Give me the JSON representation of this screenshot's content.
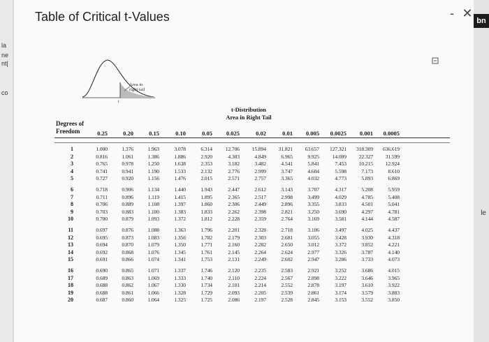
{
  "window": {
    "title": "Table of Critical t-Values",
    "minimize_label": "-",
    "close_label": "✕"
  },
  "background": {
    "left_fragments": [
      "la",
      "ne",
      "nt|",
      "co"
    ],
    "right_tab": "bn",
    "right_fragment": "le"
  },
  "figure": {
    "label": "Area in right tail",
    "t_marker": "t"
  },
  "table": {
    "title": "t-Distribution",
    "subtitle": "Area in Right Tail",
    "df_header": "Degrees of Freedom",
    "columns": [
      "0.25",
      "0.20",
      "0.15",
      "0.10",
      "0.05",
      "0.025",
      "0.02",
      "0.01",
      "0.005",
      "0.0025",
      "0.001",
      "0.0005"
    ],
    "rows": [
      {
        "df": "1",
        "values": [
          "1.000",
          "1.376",
          "1.963",
          "3.078",
          "6.314",
          "12.706",
          "15.894",
          "31.821",
          "63.657",
          "127.321",
          "318.309",
          "636.619"
        ]
      },
      {
        "df": "2",
        "values": [
          "0.816",
          "1.061",
          "1.386",
          "1.886",
          "2.920",
          "4.303",
          "4.849",
          "6.965",
          "9.925",
          "14.089",
          "22.327",
          "31.599"
        ]
      },
      {
        "df": "3",
        "values": [
          "0.765",
          "0.978",
          "1.250",
          "1.638",
          "2.353",
          "3.182",
          "3.482",
          "4.541",
          "5.841",
          "7.453",
          "10.215",
          "12.924"
        ]
      },
      {
        "df": "4",
        "values": [
          "0.741",
          "0.941",
          "1.190",
          "1.533",
          "2.132",
          "2.776",
          "2.999",
          "3.747",
          "4.604",
          "5.598",
          "7.173",
          "8.610"
        ]
      },
      {
        "df": "5",
        "values": [
          "0.727",
          "0.920",
          "1.156",
          "1.476",
          "2.015",
          "2.571",
          "2.757",
          "3.365",
          "4.032",
          "4.773",
          "5.893",
          "6.869"
        ]
      },
      {
        "df": "6",
        "values": [
          "0.718",
          "0.906",
          "1.134",
          "1.440",
          "1.943",
          "2.447",
          "2.612",
          "3.143",
          "3.707",
          "4.317",
          "5.208",
          "5.959"
        ]
      },
      {
        "df": "7",
        "values": [
          "0.711",
          "0.896",
          "1.119",
          "1.415",
          "1.895",
          "2.365",
          "2.517",
          "2.998",
          "3.499",
          "4.029",
          "4.785",
          "5.408"
        ]
      },
      {
        "df": "8",
        "values": [
          "0.706",
          "0.889",
          "1.108",
          "1.397",
          "1.860",
          "2.306",
          "2.449",
          "2.896",
          "3.355",
          "3.833",
          "4.501",
          "5.041"
        ]
      },
      {
        "df": "9",
        "values": [
          "0.703",
          "0.883",
          "1.100",
          "1.383",
          "1.833",
          "2.262",
          "2.398",
          "2.821",
          "3.250",
          "3.690",
          "4.297",
          "4.781"
        ]
      },
      {
        "df": "10",
        "values": [
          "0.700",
          "0.879",
          "1.093",
          "1.372",
          "1.812",
          "2.228",
          "2.359",
          "2.764",
          "3.169",
          "3.581",
          "4.144",
          "4.587"
        ]
      },
      {
        "df": "11",
        "values": [
          "0.697",
          "0.876",
          "1.088",
          "1.363",
          "1.796",
          "2.201",
          "2.328",
          "2.718",
          "3.106",
          "3.497",
          "4.025",
          "4.437"
        ]
      },
      {
        "df": "12",
        "values": [
          "0.695",
          "0.873",
          "1.083",
          "1.356",
          "1.782",
          "2.179",
          "2.303",
          "2.681",
          "3.055",
          "3.428",
          "3.930",
          "4.318"
        ]
      },
      {
        "df": "13",
        "values": [
          "0.694",
          "0.870",
          "1.079",
          "1.350",
          "1.771",
          "2.160",
          "2.282",
          "2.650",
          "3.012",
          "3.372",
          "3.852",
          "4.221"
        ]
      },
      {
        "df": "14",
        "values": [
          "0.692",
          "0.868",
          "1.076",
          "1.345",
          "1.761",
          "2.145",
          "2.264",
          "2.624",
          "2.977",
          "3.326",
          "3.787",
          "4.140"
        ]
      },
      {
        "df": "15",
        "values": [
          "0.691",
          "0.866",
          "1.074",
          "1.341",
          "1.753",
          "2.131",
          "2.249",
          "2.602",
          "2.947",
          "3.286",
          "3.733",
          "4.073"
        ]
      },
      {
        "df": "16",
        "values": [
          "0.690",
          "0.865",
          "1.071",
          "1.337",
          "1.746",
          "2.120",
          "2.235",
          "2.583",
          "2.921",
          "3.252",
          "3.686",
          "4.015"
        ]
      },
      {
        "df": "17",
        "values": [
          "0.689",
          "0.863",
          "1.069",
          "1.333",
          "1.740",
          "2.110",
          "2.224",
          "2.567",
          "2.898",
          "3.222",
          "3.646",
          "3.965"
        ]
      },
      {
        "df": "18",
        "values": [
          "0.688",
          "0.862",
          "1.067",
          "1.330",
          "1.734",
          "2.101",
          "2.214",
          "2.552",
          "2.878",
          "3.197",
          "3.610",
          "3.922"
        ]
      },
      {
        "df": "19",
        "values": [
          "0.688",
          "0.861",
          "1.066",
          "1.328",
          "1.729",
          "2.093",
          "2.205",
          "2.539",
          "2.861",
          "3.174",
          "3.579",
          "3.883"
        ]
      },
      {
        "df": "20",
        "values": [
          "0.687",
          "0.860",
          "1.064",
          "1.325",
          "1.725",
          "2.086",
          "2.197",
          "2.528",
          "2.845",
          "3.153",
          "3.552",
          "3.850"
        ]
      }
    ]
  }
}
